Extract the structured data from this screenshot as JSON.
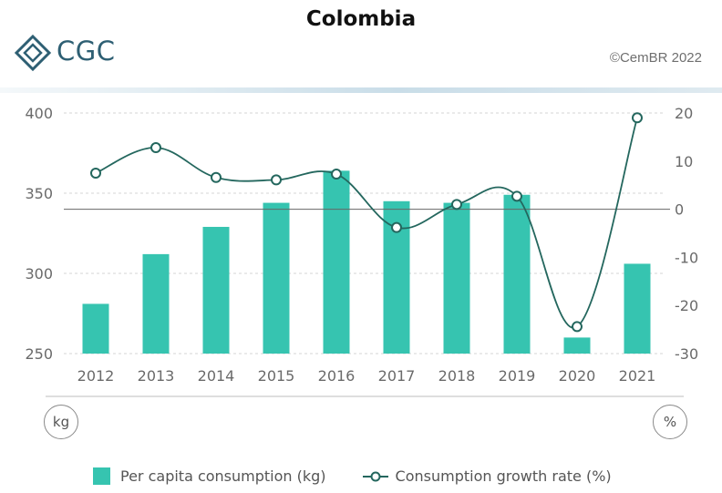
{
  "header": {
    "title": "Colombia",
    "logo_text": "CGC",
    "copyright": "©CemBR 2022"
  },
  "chart_data": {
    "type": "bar+line",
    "categories": [
      "2012",
      "2013",
      "2014",
      "2015",
      "2016",
      "2017",
      "2018",
      "2019",
      "2020",
      "2021"
    ],
    "series": [
      {
        "name": "Per capita consumption (kg)",
        "type": "bar",
        "axis": "left",
        "values": [
          281,
          312,
          329,
          344,
          364,
          345,
          344,
          349,
          260,
          306
        ]
      },
      {
        "name": "Consumption growth rate (%)",
        "type": "line",
        "axis": "right",
        "values": [
          7.5,
          12.8,
          6.6,
          6.1,
          7.3,
          -3.8,
          1.0,
          2.7,
          -24.4,
          19.0
        ]
      }
    ],
    "y_left": {
      "unit": "kg",
      "ylim": [
        250,
        400
      ],
      "ticks": [
        250,
        300,
        350,
        400
      ]
    },
    "y_right": {
      "unit": "%",
      "ylim": [
        -30,
        20
      ],
      "ticks": [
        -30,
        -20,
        -10,
        0,
        10,
        20
      ]
    },
    "grid": "dashed horizontal",
    "legend_position": "bottom",
    "colors": {
      "bar": "#36c4b0",
      "line": "#24675e",
      "marker_fill": "#ffffff"
    }
  }
}
